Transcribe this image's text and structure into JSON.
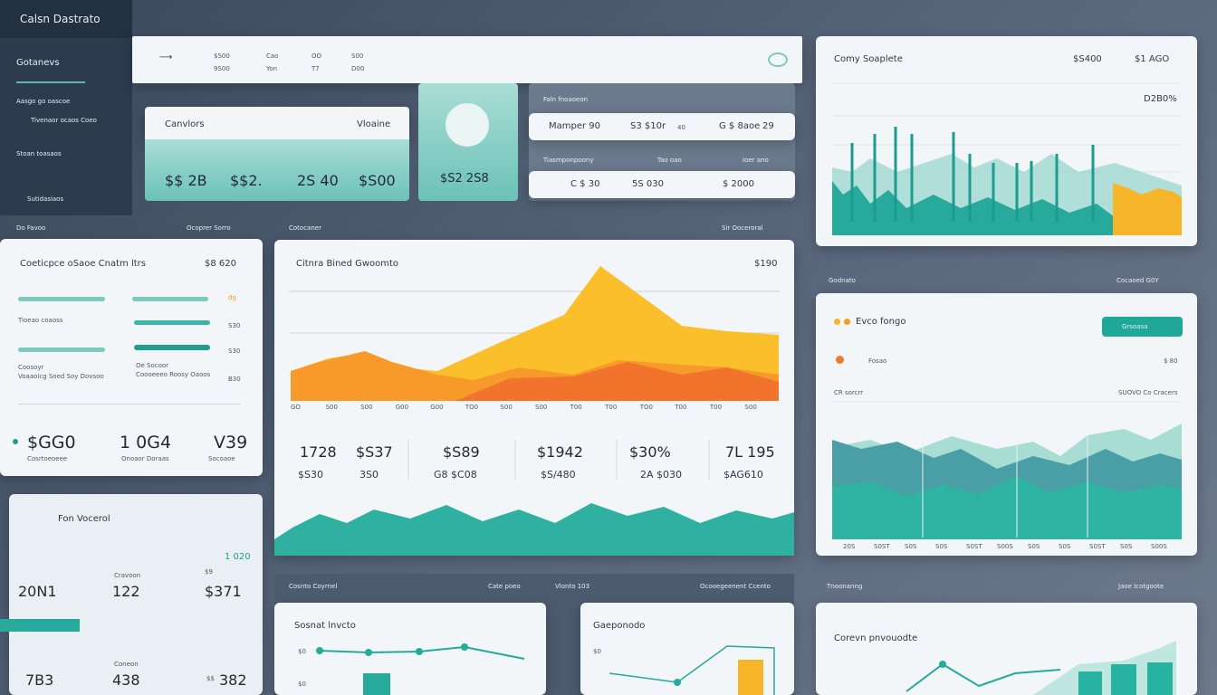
{
  "sidebar": {
    "title": "Calsn Dastrato",
    "section": "Gotanevs",
    "items": [
      "Aasgo go oascoe",
      "Tivenaor ocaos Coeo",
      "Stoan toasaos",
      "Sutidasiaos"
    ]
  },
  "header": {
    "cols": [
      [
        "$S00",
        "9S00"
      ],
      [
        "Cao",
        "Yon"
      ],
      [
        "OO",
        "T7"
      ],
      [
        "S00",
        "D00"
      ]
    ]
  },
  "card_a": {
    "title": "Canvlors",
    "label": "Vloaine",
    "values": [
      "$$ 2B",
      "$$2.",
      "2S 40",
      "$S00"
    ]
  },
  "card_gauge": {
    "value": "$S2 2S8"
  },
  "card_b": {
    "title": "Faln fnoaoeon",
    "row1": [
      "Mamper 90",
      "S3 $10r",
      "40",
      "G $ 8aoe",
      "29"
    ],
    "sub": [
      "Tiasmponpoony",
      "Tao oao",
      "Ioer ano"
    ],
    "row2": [
      "C $ 30",
      "5S 030",
      "$ 2000"
    ]
  },
  "top_right": {
    "title": "Comy Soaplete",
    "v1": "$S400",
    "v2": "$1 AGO",
    "v3": "D2B0%"
  },
  "left_panel": {
    "header": [
      "Do Favoo",
      "Ocoprer Sorro"
    ],
    "title": "Coeticpce oSaoe Cnatm ltrs",
    "value": "$8 620",
    "bar_labels": [
      "dg",
      "S30",
      "S30",
      "B30"
    ],
    "notes": [
      "Tioeao coaoss",
      "Coosoyr",
      "Voaaoicg Soed Soy Dovsoo",
      "Oe Socoor",
      "Coooeeeo Roosy Oaoos"
    ],
    "stats": [
      [
        "$GG0",
        "Cosrtoeoeee"
      ],
      [
        "1 0G4",
        "Onoaor Doraas"
      ],
      [
        "V39",
        "Socoaoe"
      ]
    ]
  },
  "center": {
    "header": [
      "Cotocaner",
      "Sir Ooceroral"
    ],
    "title": "Citnra Bined Gwoomto",
    "value": "$190",
    "xlabels": [
      "GO",
      "S00",
      "S00",
      "G00",
      "G00",
      "TO0",
      "S00",
      "S00",
      "T00",
      "T00",
      "TO0",
      "T00",
      "T00",
      "S00"
    ],
    "stats": [
      [
        "1728",
        "$S30"
      ],
      [
        "$S37",
        "3S0"
      ],
      [
        "$S89",
        "G8 $C08"
      ],
      [
        "$1942",
        "$S/480"
      ],
      [
        "$30%",
        "2A $030"
      ],
      [
        "7L 195",
        "$AG610"
      ]
    ]
  },
  "right_mid": {
    "header": [
      "Godnato",
      "Cocaoed G0Y"
    ],
    "legend": "Evco fongo",
    "button": "Grsoasa",
    "row": [
      "Fosao",
      "$ 80"
    ],
    "notes": [
      "CR sorcrr",
      "SUOVO Co Cracers"
    ],
    "xlabels": [
      "20S",
      "S0ST",
      "S0S",
      "S0S",
      "S0ST",
      "S00S",
      "S0S",
      "S0S",
      "S0ST",
      "S0S",
      "S00S"
    ]
  },
  "left_lower": {
    "title": "Fon Vocerol",
    "top": "1 020",
    "row1": [
      "20N1",
      "Cravoon",
      "122",
      "$9",
      "$371"
    ],
    "row2": [
      "7B3",
      "Coneon",
      "438",
      "$$",
      "382"
    ]
  },
  "bottom": {
    "header": [
      "Cosnto Coyrnel",
      "Cate poeo",
      "Vlonto 103",
      "Ocooegeenent Ccento"
    ],
    "card1": "Sosnat lnvcto",
    "card2": "Gaeponodo",
    "ylabels": [
      "$0",
      "$0",
      "$0"
    ],
    "right_header": [
      "Tnoonanng",
      "Jaoe Icotgoote"
    ],
    "card3": "Corevn pnvouodte"
  }
}
